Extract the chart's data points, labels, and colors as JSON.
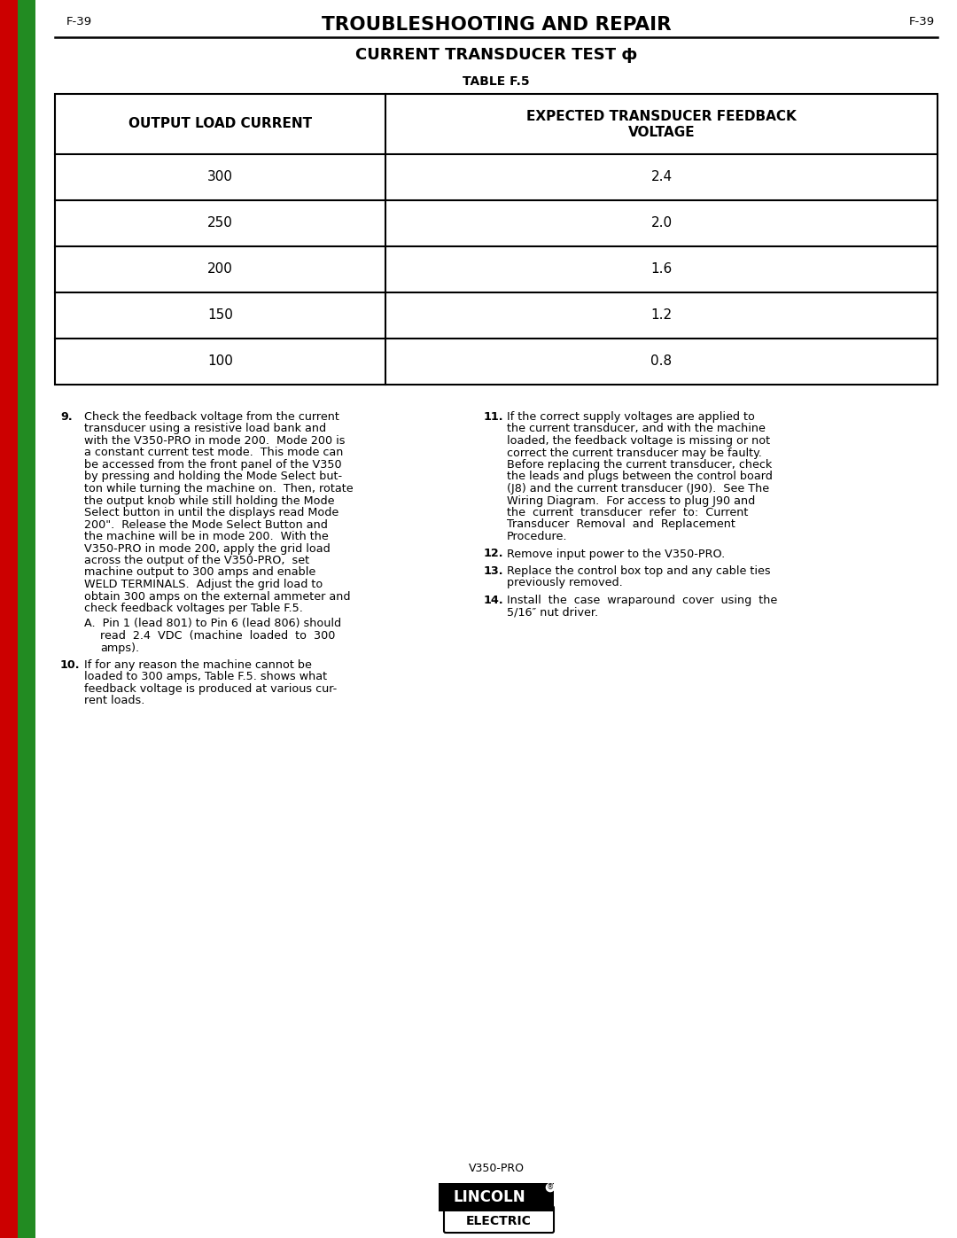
{
  "page_width": 10.8,
  "page_height": 13.97,
  "background_color": "#ffffff",
  "sidebar_red_color": "#cc0000",
  "sidebar_green_color": "#228B22",
  "header_page_num": "F-39",
  "header_title": "TROUBLESHOOTING AND REPAIR",
  "section_title": "CURRENT TRANSDUCER TEST ф",
  "table_title": "TABLE F.5",
  "table_col1_header": "OUTPUT LOAD CURRENT",
  "table_col2_header_line1": "EXPECTED TRANSDUCER FEEDBACK",
  "table_col2_header_line2": "VOLTAGE",
  "table_data": [
    [
      "300",
      "2.4"
    ],
    [
      "250",
      "2.0"
    ],
    [
      "200",
      "1.6"
    ],
    [
      "150",
      "1.2"
    ],
    [
      "100",
      "0.8"
    ]
  ],
  "footer_model": "V350-PRO"
}
